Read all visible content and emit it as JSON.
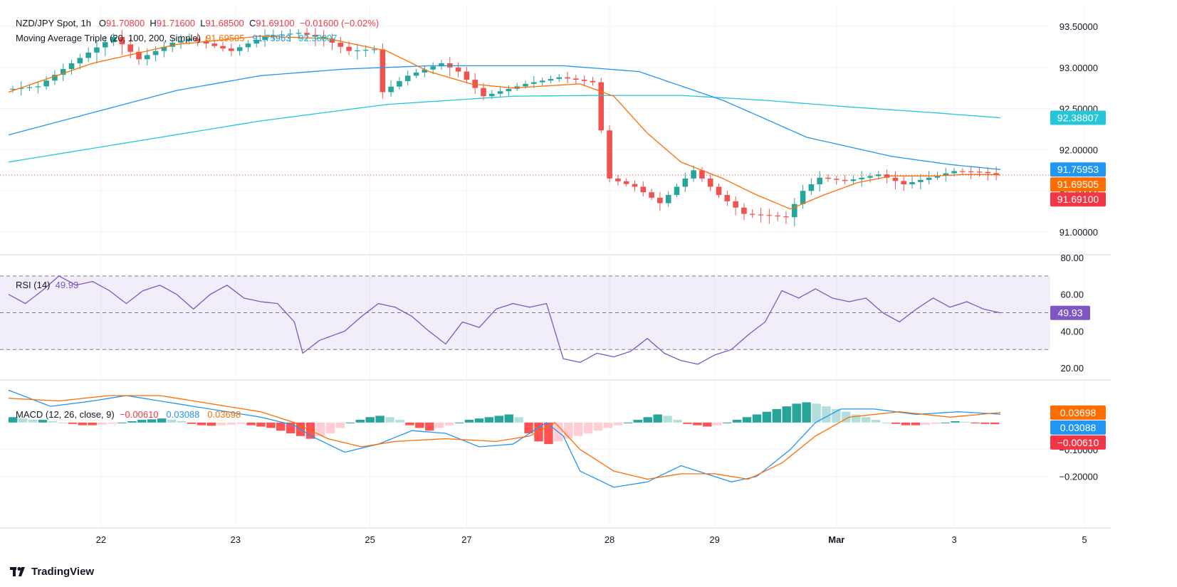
{
  "colors": {
    "up": "#26a69a",
    "down": "#ef5350",
    "ma20": "#ff6d00",
    "ma100": "#2196f3",
    "ma200": "#26c6da",
    "rsi": "#7e57c2",
    "macd": "#2196f3",
    "signal": "#ff6d00",
    "grid": "#f0f3fa",
    "text": "#131722"
  },
  "header": {
    "symbol": "NZD/JPY Spot, 1h",
    "o_label": "O",
    "o": "91.70800",
    "h_label": "H",
    "h": "91.71600",
    "l_label": "L",
    "l": "91.68500",
    "c_label": "C",
    "c": "91.69100",
    "change": "−0.01600 (−0.02%)",
    "ma_label": "Moving Average Triple (20, 100, 200, Simple)",
    "ma20": "91.69505",
    "ma100": "91.75953",
    "ma200": "92.38807"
  },
  "rsi_legend": {
    "label": "RSI (14)",
    "value": "49.93"
  },
  "macd_legend": {
    "label": "MACD (12, 26, close, 9)",
    "hist": "−0.00610",
    "macd": "0.03088",
    "signal": "0.03698"
  },
  "footer": {
    "brand": "TradingView"
  },
  "chart_data": [
    {
      "type": "candlestick",
      "title": "NZD/JPY Spot, 1h",
      "ylim": [
        90.75,
        93.75
      ],
      "y_ticks": [
        "93.50000",
        "93.00000",
        "92.50000",
        "92.00000",
        "91.50000",
        "91.00000"
      ],
      "x_ticks": [
        "22",
        "23",
        "25",
        "27",
        "28",
        "29",
        "Mar",
        "3",
        "5"
      ],
      "price_labels": [
        {
          "value": "92.38807",
          "price": 92.38807,
          "color": "#26c6da"
        },
        {
          "value": "91.75953",
          "price": 91.75953,
          "color": "#2196f3"
        },
        {
          "value": "91.69505",
          "price": 91.69505,
          "color": "#ff6d00"
        },
        {
          "value": "91.69100",
          "price": 91.691,
          "color": "#f23645"
        }
      ],
      "current_price": 91.691,
      "close_path": [
        [
          0,
          92.73
        ],
        [
          4,
          92.77
        ],
        [
          8,
          93.05
        ],
        [
          10,
          93.18
        ],
        [
          13,
          93.37
        ],
        [
          16,
          93.1
        ],
        [
          20,
          93.3
        ],
        [
          22,
          93.35
        ],
        [
          27,
          93.2
        ],
        [
          31,
          93.38
        ],
        [
          35,
          93.42
        ],
        [
          38,
          93.35
        ],
        [
          41,
          93.2
        ],
        [
          44,
          93.22
        ],
        [
          45,
          92.7
        ],
        [
          48,
          92.9
        ],
        [
          52,
          93.05
        ],
        [
          54,
          92.95
        ],
        [
          57,
          92.65
        ],
        [
          62,
          92.8
        ],
        [
          66,
          92.88
        ],
        [
          70,
          92.82
        ],
        [
          72,
          91.65
        ],
        [
          75,
          91.55
        ],
        [
          78,
          91.35
        ],
        [
          82,
          91.75
        ],
        [
          85,
          91.45
        ],
        [
          88,
          91.22
        ],
        [
          91,
          91.2
        ],
        [
          93,
          91.18
        ],
        [
          95,
          91.5
        ],
        [
          97,
          91.66
        ],
        [
          100,
          91.62
        ],
        [
          104,
          91.7
        ],
        [
          107,
          91.58
        ],
        [
          110,
          91.66
        ],
        [
          113,
          91.74
        ],
        [
          116,
          91.73
        ],
        [
          118,
          91.7
        ]
      ],
      "ma20_path": [
        [
          0,
          92.7
        ],
        [
          10,
          93.05
        ],
        [
          20,
          93.28
        ],
        [
          30,
          93.38
        ],
        [
          38,
          93.35
        ],
        [
          45,
          93.2
        ],
        [
          50,
          92.95
        ],
        [
          55,
          92.8
        ],
        [
          60,
          92.75
        ],
        [
          68,
          92.8
        ],
        [
          72,
          92.65
        ],
        [
          76,
          92.2
        ],
        [
          80,
          91.85
        ],
        [
          85,
          91.65
        ],
        [
          89,
          91.45
        ],
        [
          93,
          91.28
        ],
        [
          97,
          91.45
        ],
        [
          101,
          91.6
        ],
        [
          105,
          91.68
        ],
        [
          110,
          91.68
        ],
        [
          114,
          91.7
        ],
        [
          118,
          91.69505
        ]
      ],
      "ma100_path": [
        [
          0,
          92.18
        ],
        [
          10,
          92.45
        ],
        [
          20,
          92.72
        ],
        [
          30,
          92.9
        ],
        [
          40,
          92.98
        ],
        [
          50,
          93.02
        ],
        [
          60,
          93.02
        ],
        [
          66,
          93.02
        ],
        [
          75,
          92.95
        ],
        [
          85,
          92.6
        ],
        [
          95,
          92.15
        ],
        [
          105,
          91.92
        ],
        [
          112,
          91.82
        ],
        [
          118,
          91.75953
        ]
      ],
      "ma200_path": [
        [
          0,
          91.85
        ],
        [
          15,
          92.1
        ],
        [
          30,
          92.35
        ],
        [
          45,
          92.55
        ],
        [
          60,
          92.65
        ],
        [
          70,
          92.66
        ],
        [
          80,
          92.66
        ],
        [
          90,
          92.6
        ],
        [
          100,
          92.52
        ],
        [
          110,
          92.45
        ],
        [
          118,
          92.38807
        ]
      ]
    },
    {
      "type": "line",
      "title": "RSI (14)",
      "ylim": [
        15,
        80
      ],
      "y_ticks": [
        "80.00",
        "60.00",
        "40.00",
        "20.00"
      ],
      "bands": {
        "upper": 70,
        "middle": 50,
        "lower": 30
      },
      "last": 49.93,
      "path": [
        [
          0,
          60
        ],
        [
          2,
          55
        ],
        [
          4,
          62
        ],
        [
          6,
          70
        ],
        [
          8,
          65
        ],
        [
          10,
          67
        ],
        [
          12,
          62
        ],
        [
          14,
          55
        ],
        [
          16,
          62
        ],
        [
          18,
          65
        ],
        [
          20,
          60
        ],
        [
          22,
          52
        ],
        [
          24,
          60
        ],
        [
          26,
          65
        ],
        [
          28,
          58
        ],
        [
          30,
          56
        ],
        [
          32,
          55
        ],
        [
          34,
          45
        ],
        [
          35,
          28
        ],
        [
          37,
          35
        ],
        [
          40,
          40
        ],
        [
          42,
          48
        ],
        [
          44,
          55
        ],
        [
          46,
          53
        ],
        [
          48,
          48
        ],
        [
          50,
          40
        ],
        [
          52,
          33
        ],
        [
          54,
          45
        ],
        [
          56,
          42
        ],
        [
          58,
          52
        ],
        [
          60,
          55
        ],
        [
          62,
          53
        ],
        [
          64,
          55
        ],
        [
          66,
          25
        ],
        [
          68,
          23
        ],
        [
          70,
          28
        ],
        [
          72,
          26
        ],
        [
          74,
          29
        ],
        [
          76,
          36
        ],
        [
          78,
          28
        ],
        [
          80,
          24
        ],
        [
          82,
          22
        ],
        [
          84,
          27
        ],
        [
          86,
          30
        ],
        [
          88,
          38
        ],
        [
          90,
          45
        ],
        [
          92,
          62
        ],
        [
          94,
          58
        ],
        [
          96,
          63
        ],
        [
          98,
          58
        ],
        [
          100,
          56
        ],
        [
          102,
          58
        ],
        [
          104,
          50
        ],
        [
          106,
          45
        ],
        [
          108,
          52
        ],
        [
          110,
          58
        ],
        [
          112,
          53
        ],
        [
          114,
          56
        ],
        [
          116,
          52
        ],
        [
          118,
          49.93
        ]
      ]
    },
    {
      "type": "bar+line",
      "title": "MACD (12, 26, close, 9)",
      "ylim": [
        -0.28,
        0.15
      ],
      "y_ticks": [
        "−0.10000",
        "−0.20000"
      ],
      "price_labels": [
        {
          "value": "0.03698",
          "price": 0.03698,
          "color": "#ff6d00"
        },
        {
          "value": "0.03088",
          "price": 0.03088,
          "color": "#2196f3"
        },
        {
          "value": "−0.00610",
          "price": -0.0061,
          "color": "#f23645"
        }
      ],
      "macd_path": [
        [
          0,
          0.12
        ],
        [
          5,
          0.06
        ],
        [
          10,
          0.08
        ],
        [
          14,
          0.1
        ],
        [
          18,
          0.08
        ],
        [
          22,
          0.06
        ],
        [
          26,
          0.04
        ],
        [
          30,
          0.02
        ],
        [
          34,
          -0.01
        ],
        [
          36,
          -0.05
        ],
        [
          40,
          -0.11
        ],
        [
          44,
          -0.08
        ],
        [
          48,
          -0.03
        ],
        [
          52,
          -0.04
        ],
        [
          56,
          -0.09
        ],
        [
          60,
          -0.08
        ],
        [
          64,
          0.0
        ],
        [
          66,
          -0.05
        ],
        [
          68,
          -0.18
        ],
        [
          72,
          -0.24
        ],
        [
          76,
          -0.22
        ],
        [
          80,
          -0.16
        ],
        [
          84,
          -0.2
        ],
        [
          86,
          -0.22
        ],
        [
          89,
          -0.2
        ],
        [
          93,
          -0.1
        ],
        [
          96,
          0.0
        ],
        [
          99,
          0.05
        ],
        [
          103,
          0.05
        ],
        [
          108,
          0.03
        ],
        [
          113,
          0.04
        ],
        [
          118,
          0.03088
        ]
      ],
      "signal_path": [
        [
          0,
          0.09
        ],
        [
          6,
          0.08
        ],
        [
          12,
          0.1
        ],
        [
          18,
          0.1
        ],
        [
          24,
          0.07
        ],
        [
          30,
          0.04
        ],
        [
          34,
          0.0
        ],
        [
          38,
          -0.06
        ],
        [
          42,
          -0.09
        ],
        [
          46,
          -0.07
        ],
        [
          52,
          -0.06
        ],
        [
          58,
          -0.07
        ],
        [
          62,
          -0.05
        ],
        [
          65,
          0.0
        ],
        [
          68,
          -0.1
        ],
        [
          72,
          -0.18
        ],
        [
          76,
          -0.21
        ],
        [
          80,
          -0.19
        ],
        [
          84,
          -0.19
        ],
        [
          88,
          -0.21
        ],
        [
          92,
          -0.15
        ],
        [
          96,
          -0.05
        ],
        [
          100,
          0.02
        ],
        [
          106,
          0.04
        ],
        [
          112,
          0.02
        ],
        [
          118,
          0.03698
        ]
      ],
      "histogram": [
        0.02,
        0.015,
        0.01,
        0.01,
        0.005,
        0.0,
        -0.005,
        -0.01,
        -0.01,
        -0.008,
        -0.005,
        0.0,
        0.005,
        0.01,
        0.012,
        0.015,
        0.01,
        0.005,
        -0.005,
        -0.01,
        -0.012,
        -0.01,
        -0.008,
        -0.005,
        -0.01,
        -0.015,
        -0.02,
        -0.03,
        -0.04,
        -0.05,
        -0.06,
        -0.05,
        -0.04,
        -0.02,
        0.0,
        0.01,
        0.02,
        0.025,
        0.02,
        0.01,
        -0.01,
        -0.02,
        -0.03,
        -0.02,
        -0.01,
        0.0,
        0.01,
        0.015,
        0.02,
        0.025,
        0.03,
        0.02,
        -0.04,
        -0.07,
        -0.08,
        -0.07,
        -0.06,
        -0.05,
        -0.04,
        -0.03,
        -0.02,
        -0.01,
        0.0,
        0.01,
        0.02,
        0.03,
        0.025,
        0.01,
        -0.005,
        -0.01,
        -0.015,
        -0.01,
        0.0,
        0.01,
        0.02,
        0.03,
        0.04,
        0.05,
        0.06,
        0.07,
        0.075,
        0.07,
        0.06,
        0.05,
        0.04,
        0.03,
        0.02,
        0.01,
        0.0,
        -0.005,
        -0.01,
        -0.01,
        -0.008,
        -0.005,
        0.0,
        0.005,
        0.003,
        -0.003,
        -0.005,
        -0.0061
      ]
    }
  ]
}
